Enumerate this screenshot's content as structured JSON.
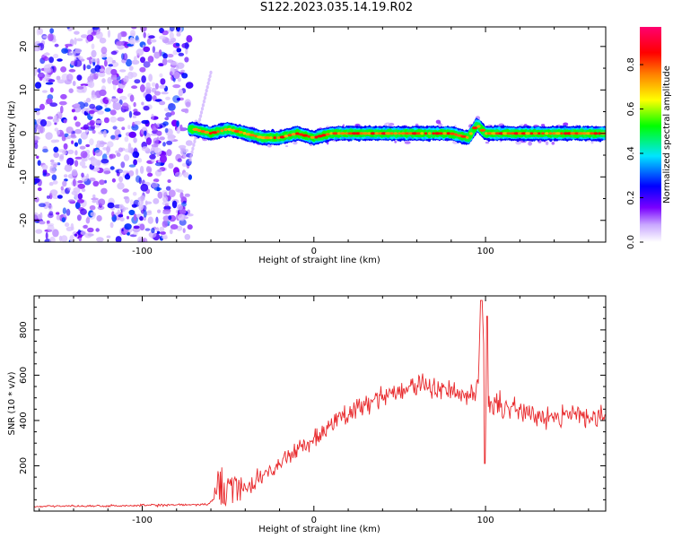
{
  "title": "S122.2023.035.14.19.R02",
  "chart_data": [
    {
      "type": "heatmap",
      "name": "spectrogram",
      "xlabel": "Height of straight line (km)",
      "ylabel": "Frequency (Hz)",
      "xlim": [
        -163,
        170
      ],
      "ylim": [
        -25,
        24.5
      ],
      "xticks": [
        -100,
        0,
        100
      ],
      "yticks": [
        -20,
        -10,
        0,
        10,
        20
      ],
      "grid": false,
      "colorbar": {
        "label": "Normalized spectral amplitude",
        "range": [
          0.0,
          0.97
        ],
        "ticks": [
          0.0,
          0.2,
          0.4,
          0.6,
          0.8
        ],
        "colormap": [
          "#ffffff",
          "#8a00ff",
          "#0000ff",
          "#00e5ff",
          "#00ff00",
          "#ffff00",
          "#ff8000",
          "#ff0000",
          "#ff0070"
        ]
      },
      "regions": [
        {
          "description_x": [
            -163,
            -72
          ],
          "pattern": "broadband noise",
          "amplitude": [
            0.05,
            0.25
          ]
        },
        {
          "description_x": [
            -72,
            170
          ],
          "pattern": "narrow band near 0 Hz",
          "amplitude": [
            0.4,
            0.9
          ]
        }
      ],
      "trace": {
        "x": [
          -70,
          -60,
          -50,
          -40,
          -30,
          -20,
          -10,
          0,
          10,
          20,
          40,
          60,
          80,
          90,
          95,
          100,
          120,
          140,
          160,
          170
        ],
        "y": [
          1,
          0,
          1,
          0,
          -1,
          -1,
          0,
          -1,
          0,
          0,
          0,
          0,
          0,
          -1,
          2,
          0,
          0,
          0,
          0,
          0
        ]
      }
    },
    {
      "type": "line",
      "name": "snr",
      "xlabel": "Height of straight line (km)",
      "ylabel": "SNR (10 * v/v)",
      "xlim": [
        -163,
        170
      ],
      "ylim": [
        0,
        950
      ],
      "xticks": [
        -100,
        0,
        100
      ],
      "yticks": [
        200,
        400,
        600,
        800
      ],
      "grid": false,
      "color": "#e8282b",
      "series": [
        {
          "x": [
            -163,
            -150,
            -130,
            -110,
            -90,
            -70,
            -62,
            -57,
            -55,
            -53,
            -50,
            -45,
            -40,
            -35,
            -30,
            -20,
            -10,
            0,
            10,
            20,
            30,
            40,
            50,
            60,
            70,
            80,
            90,
            95,
            98,
            100,
            102,
            110,
            120,
            130,
            140,
            150,
            160,
            170
          ],
          "values": [
            20,
            22,
            22,
            24,
            26,
            28,
            30,
            60,
            200,
            150,
            120,
            110,
            90,
            130,
            150,
            210,
            270,
            320,
            380,
            430,
            480,
            510,
            530,
            560,
            550,
            520,
            500,
            520,
            940,
            430,
            480,
            460,
            440,
            430,
            420,
            430,
            420,
            420
          ]
        }
      ]
    }
  ]
}
